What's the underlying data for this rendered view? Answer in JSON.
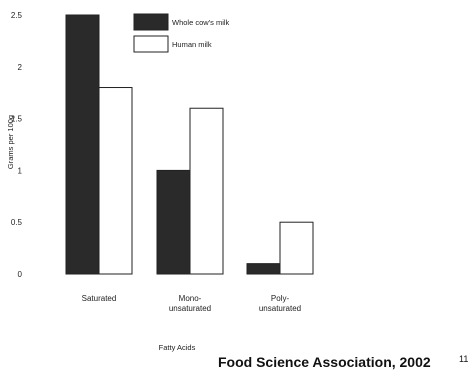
{
  "chart_data": {
    "type": "bar",
    "categories": [
      [
        "Saturated"
      ],
      [
        "Mono-",
        "unsaturated"
      ],
      [
        "Poly-",
        "unsaturated"
      ]
    ],
    "series": [
      {
        "name": "Whole cow's milk",
        "values": [
          2.5,
          1.0,
          0.1
        ],
        "color": "#2a2a2a"
      },
      {
        "name": "Human milk",
        "values": [
          1.8,
          1.6,
          0.5
        ],
        "color": "#ffffff"
      }
    ],
    "xlabel": "Fatty Acids",
    "ylabel": "Grams per 100g",
    "ylim": [
      0,
      2.5
    ],
    "yticks": [
      "0",
      "0.5",
      "1",
      "1.5",
      "2",
      "2.5"
    ],
    "grid": false,
    "legend_position": "top-center"
  },
  "footer": {
    "source": "Food Science Association, 2002",
    "page_number": "11"
  }
}
